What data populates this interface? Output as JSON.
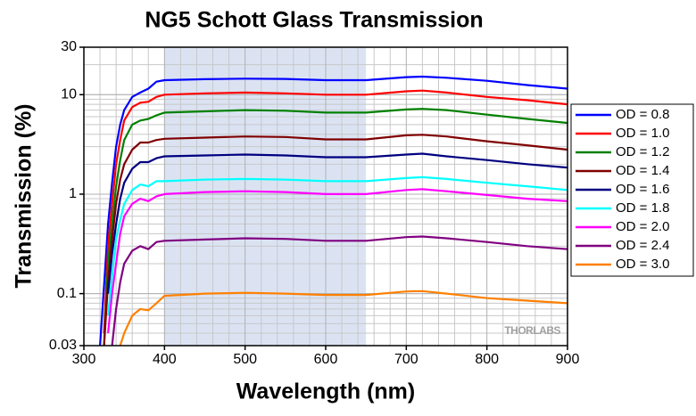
{
  "chart_data": {
    "type": "line",
    "title": "NG5 Schott Glass Transmission",
    "xlabel": "Wavelength (nm)",
    "ylabel": "Transmission (%)",
    "annotation": "THORLABS",
    "x": [
      320,
      325,
      330,
      335,
      340,
      345,
      350,
      360,
      370,
      380,
      390,
      400,
      450,
      500,
      550,
      600,
      650,
      700,
      720,
      750,
      800,
      850,
      900
    ],
    "series": [
      {
        "name": "OD = 0.8",
        "color": "#0000ff",
        "values": [
          0.03,
          0.12,
          0.5,
          1.3,
          3,
          5,
          7,
          9.5,
          10.5,
          11.5,
          13.5,
          14,
          14.3,
          14.5,
          14.4,
          14,
          14,
          15,
          15.2,
          14.8,
          13.8,
          12.5,
          11.5
        ]
      },
      {
        "name": "OD = 1.0",
        "color": "#ff0000",
        "values": [
          null,
          0.04,
          0.3,
          0.8,
          2,
          3.5,
          5.5,
          7.5,
          8.3,
          8.5,
          9.5,
          10,
          10.3,
          10.5,
          10.3,
          10,
          10,
          10.8,
          11,
          10.5,
          9.5,
          8.8,
          8
        ]
      },
      {
        "name": "OD = 1.2",
        "color": "#008000",
        "values": [
          null,
          0.03,
          0.2,
          0.5,
          1.2,
          2.2,
          3.5,
          5,
          5.5,
          5.7,
          6.2,
          6.6,
          6.8,
          7,
          6.9,
          6.6,
          6.6,
          7.1,
          7.2,
          7,
          6.3,
          5.7,
          5.2
        ]
      },
      {
        "name": "OD = 1.4",
        "color": "#800000",
        "values": [
          null,
          0.03,
          0.13,
          0.35,
          0.8,
          1.4,
          2,
          2.8,
          3.3,
          3.3,
          3.5,
          3.6,
          3.7,
          3.8,
          3.75,
          3.55,
          3.55,
          3.9,
          3.95,
          3.8,
          3.4,
          3.1,
          2.8
        ]
      },
      {
        "name": "OD = 1.6",
        "color": "#000080",
        "values": [
          null,
          null,
          0.1,
          0.25,
          0.5,
          0.9,
          1.3,
          1.8,
          2.1,
          2.1,
          2.3,
          2.4,
          2.45,
          2.5,
          2.45,
          2.35,
          2.35,
          2.5,
          2.55,
          2.4,
          2.2,
          2,
          1.85
        ]
      },
      {
        "name": "OD = 1.8",
        "color": "#00ffff",
        "values": [
          null,
          null,
          0.06,
          0.15,
          0.35,
          0.55,
          0.8,
          1.1,
          1.25,
          1.2,
          1.35,
          1.35,
          1.4,
          1.42,
          1.4,
          1.35,
          1.35,
          1.45,
          1.48,
          1.42,
          1.3,
          1.2,
          1.1
        ]
      },
      {
        "name": "OD = 2.0",
        "color": "#ff00ff",
        "values": [
          null,
          null,
          0.04,
          0.1,
          0.2,
          0.4,
          0.6,
          0.8,
          0.9,
          0.85,
          0.95,
          1,
          1.05,
          1.07,
          1.05,
          1,
          1,
          1.1,
          1.12,
          1.07,
          0.98,
          0.9,
          0.85
        ]
      },
      {
        "name": "OD = 2.4",
        "color": "#800080",
        "values": [
          null,
          null,
          null,
          0.03,
          0.07,
          0.13,
          0.2,
          0.27,
          0.3,
          0.28,
          0.33,
          0.34,
          0.35,
          0.36,
          0.355,
          0.34,
          0.34,
          0.37,
          0.375,
          0.36,
          0.33,
          0.3,
          0.28
        ]
      },
      {
        "name": "OD = 3.0",
        "color": "#ff8000",
        "values": [
          null,
          null,
          null,
          null,
          null,
          0.03,
          0.04,
          0.06,
          0.07,
          0.068,
          0.08,
          0.095,
          0.1,
          0.102,
          0.1,
          0.097,
          0.097,
          0.105,
          0.106,
          0.1,
          0.09,
          0.085,
          0.08
        ]
      }
    ],
    "shaded_region": [
      400,
      650
    ],
    "shaded_color": "#dbe3f3",
    "xlim": [
      300,
      900
    ],
    "xticks": [
      300,
      400,
      500,
      600,
      700,
      800,
      900
    ],
    "ylim": [
      0.03,
      30
    ],
    "yticks": [
      0.03,
      0.1,
      1,
      10,
      30
    ],
    "log_y": true,
    "grid": true,
    "legend": "right"
  }
}
